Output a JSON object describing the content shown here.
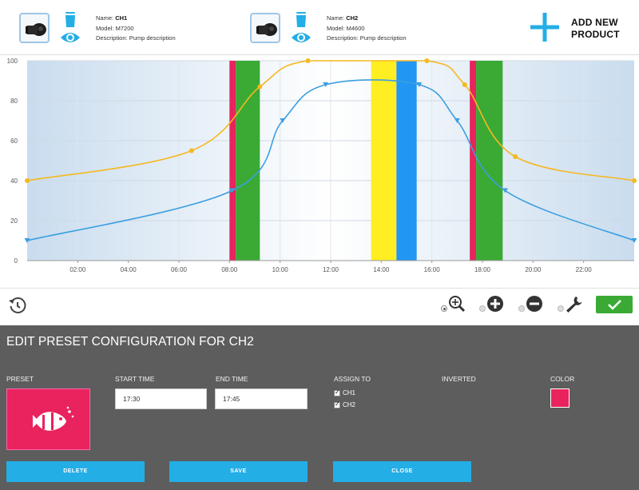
{
  "products": [
    {
      "name_label": "Name:",
      "name": "CH1",
      "model_label": "Model:",
      "model": "M7200",
      "description_label": "Description:",
      "description": "Pump description"
    },
    {
      "name_label": "Name:",
      "name": "CH2",
      "model_label": "Model:",
      "model": "M4600",
      "description_label": "Description:",
      "description": "Pump description"
    }
  ],
  "add_product": {
    "line1": "ADD NEW",
    "line2": "PRODUCT"
  },
  "colors": {
    "accent_blue": "#23aee6",
    "series_blue": "#3b9fe0",
    "series_yellow": "#f5b81f",
    "preset_pink": "#e8235d",
    "band_green": "#3aaa35",
    "band_yellow": "#ffee22",
    "band_blue": "#2196f3",
    "panel_bg": "#5d5d5d",
    "ok_green": "#3aaa35"
  },
  "chart_data": {
    "type": "line",
    "xlabel": "",
    "ylabel": "",
    "xlim": [
      0,
      24
    ],
    "ylim": [
      0,
      100
    ],
    "x_ticks": [
      "02:00",
      "04:00",
      "06:00",
      "08:00",
      "10:00",
      "12:00",
      "14:00",
      "16:00",
      "18:00",
      "20:00",
      "22:00"
    ],
    "x_tick_values": [
      2,
      4,
      6,
      8,
      10,
      12,
      14,
      16,
      18,
      20,
      22
    ],
    "y_ticks": [
      "0",
      "20",
      "40",
      "60",
      "80",
      "100"
    ],
    "y_tick_values": [
      0,
      20,
      40,
      60,
      80,
      100
    ],
    "grid": true,
    "series": [
      {
        "color": "#f5b81f",
        "marker": "circle",
        "points": [
          [
            0,
            40
          ],
          [
            6.5,
            55
          ],
          [
            9.2,
            87
          ],
          [
            11.1,
            100
          ],
          [
            15.8,
            100
          ],
          [
            17.3,
            88
          ],
          [
            19.3,
            52
          ],
          [
            24,
            40
          ]
        ]
      },
      {
        "color": "#3b9fe0",
        "marker": "triangle-down",
        "points": [
          [
            0,
            10
          ],
          [
            8.1,
            35
          ],
          [
            10.1,
            70
          ],
          [
            11.8,
            88
          ],
          [
            15.5,
            88
          ],
          [
            17.0,
            70
          ],
          [
            18.9,
            35
          ],
          [
            24,
            10
          ]
        ]
      }
    ],
    "bands": [
      {
        "start": 8.0,
        "end": 8.25,
        "color": "#e8235d"
      },
      {
        "start": 8.25,
        "end": 9.2,
        "color": "#3aaa35"
      },
      {
        "start": 13.6,
        "end": 14.6,
        "color": "#ffee22"
      },
      {
        "start": 14.6,
        "end": 15.4,
        "color": "#2196f3"
      },
      {
        "start": 17.5,
        "end": 17.75,
        "color": "#e8235d"
      },
      {
        "start": 17.75,
        "end": 18.8,
        "color": "#3aaa35"
      }
    ]
  },
  "toolbar": {
    "icons": [
      "history-icon",
      "zoom-in-icon",
      "plus-icon",
      "minus-icon",
      "wrench-icon",
      "check-icon"
    ]
  },
  "edit_panel": {
    "title": "EDIT PRESET CONFIGURATION FOR CH2",
    "preset_label": "PRESET",
    "start_time_label": "START TIME",
    "start_time_value": "17:30",
    "end_time_label": "END TIME",
    "end_time_value": "17:45",
    "assign_label": "ASSIGN TO",
    "assign_options": [
      {
        "label": "CH1",
        "checked": true
      },
      {
        "label": "CH2",
        "checked": true
      }
    ],
    "inverted_label": "INVERTED",
    "color_label": "COLOR",
    "color_value": "#e8235d",
    "delete_label": "DELETE",
    "save_label": "SAVE",
    "close_label": "CLOSE"
  }
}
